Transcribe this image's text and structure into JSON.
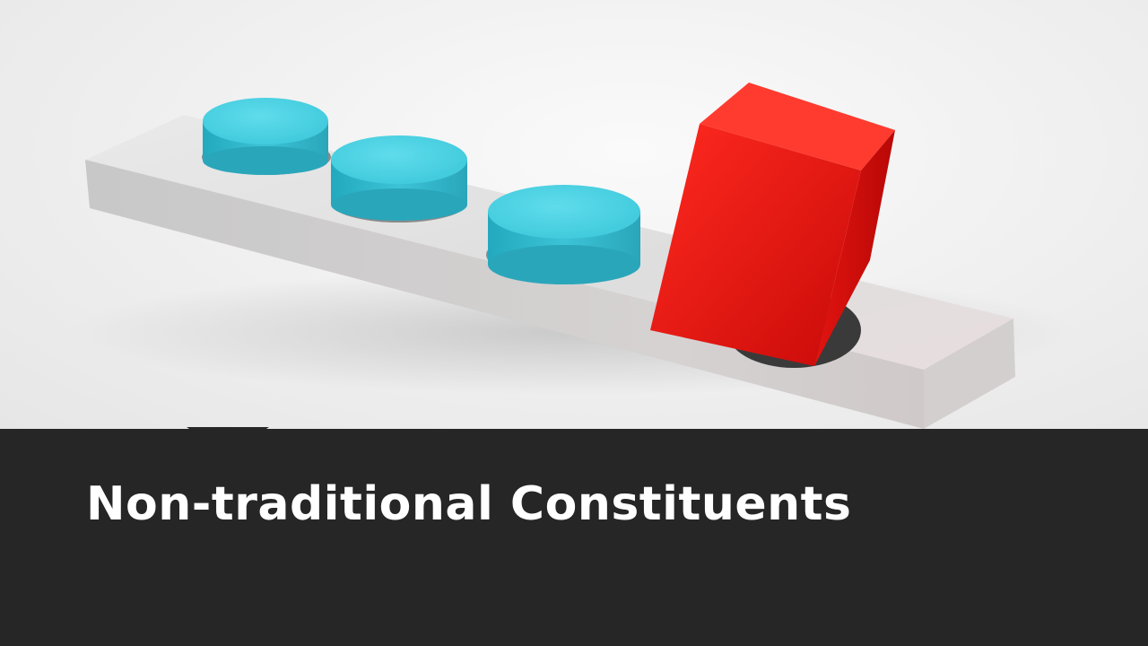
{
  "slide": {
    "title": "Non-traditional Constituents"
  },
  "image": {
    "description_icon": "peg-board-image",
    "colors": {
      "board": "#dcdcdc",
      "pegs": "#3cc3d6",
      "odd_block": "#e01010",
      "title_bar": "#262626",
      "title_text": "#ffffff"
    }
  }
}
